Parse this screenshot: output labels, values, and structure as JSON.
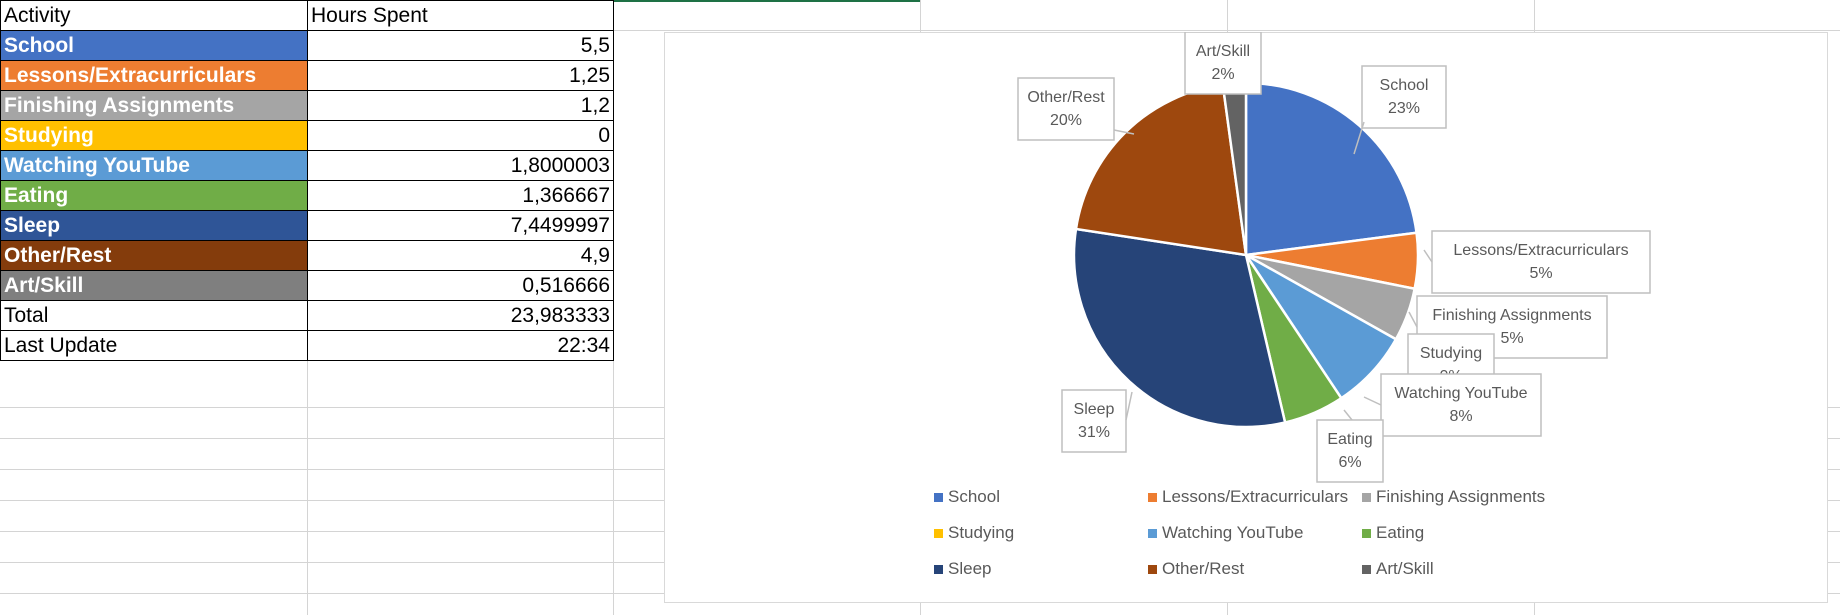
{
  "sheet": {
    "header": {
      "activity": "Activity",
      "hours": "Hours Spent"
    },
    "rows": [
      {
        "activity": "School",
        "hours": "5,5",
        "color": "#4472C4"
      },
      {
        "activity": "Lessons/Extracurriculars",
        "hours": "1,25",
        "color": "#ED7D31"
      },
      {
        "activity": "Finishing Assignments",
        "hours": "1,2",
        "color": "#A5A5A5"
      },
      {
        "activity": "Studying",
        "hours": "0",
        "color": "#FFC000"
      },
      {
        "activity": "Watching YouTube",
        "hours": "1,8000003",
        "color": "#5B9BD5"
      },
      {
        "activity": "Eating",
        "hours": "1,366667",
        "color": "#70AD47"
      },
      {
        "activity": "Sleep",
        "hours": "7,4499997",
        "color": "#2F5597"
      },
      {
        "activity": "Other/Rest",
        "hours": "4,9",
        "color": "#843C0C"
      },
      {
        "activity": "Art/Skill",
        "hours": "0,516666",
        "color": "#7F7F7F"
      }
    ],
    "total": {
      "label": "Total",
      "value": "23,983333"
    },
    "last_update": {
      "label": "Last Update",
      "value": "22:34"
    }
  },
  "chart_data": {
    "type": "pie",
    "title": "",
    "legend": "bottom",
    "start_angle_deg": 0,
    "slices": [
      {
        "name": "School",
        "value": 5.5,
        "label": "23%",
        "color": "#4472C4"
      },
      {
        "name": "Lessons/Extracurriculars",
        "value": 1.25,
        "label": "5%",
        "color": "#ED7D31"
      },
      {
        "name": "Finishing Assignments",
        "value": 1.2,
        "label": "5%",
        "color": "#A5A5A5"
      },
      {
        "name": "Studying",
        "value": 0,
        "label": "0%",
        "color": "#FFC000"
      },
      {
        "name": "Watching YouTube",
        "value": 1.8000003,
        "label": "8%",
        "color": "#5B9BD5"
      },
      {
        "name": "Eating",
        "value": 1.366667,
        "label": "6%",
        "color": "#70AD47"
      },
      {
        "name": "Sleep",
        "value": 7.4499997,
        "label": "31%",
        "color": "#264478"
      },
      {
        "name": "Other/Rest",
        "value": 4.9,
        "label": "20%",
        "color": "#9E480E"
      },
      {
        "name": "Art/Skill",
        "value": 0.516666,
        "label": "2%",
        "color": "#636363"
      }
    ]
  }
}
